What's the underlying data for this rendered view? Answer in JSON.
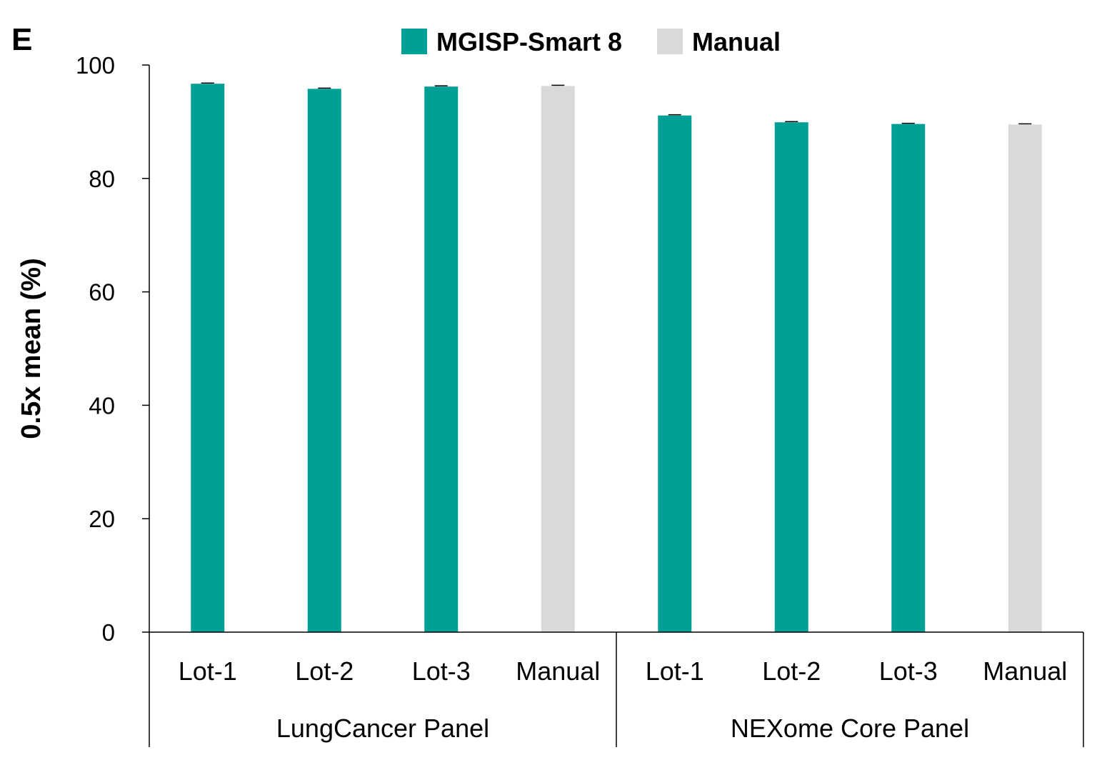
{
  "panel_label": "E",
  "colors": {
    "MGISP-Smart 8": "#00A096",
    "Manual": "#D9D9D9",
    "axis": "#000000"
  },
  "chart_data": {
    "type": "bar",
    "title": "",
    "ylabel": "0.5x mean (%)",
    "xlabel": "",
    "ylim": [
      0,
      100
    ],
    "yticks": [
      0,
      20,
      40,
      60,
      80,
      100
    ],
    "legend": {
      "placement": "top-center",
      "entries": [
        "MGISP-Smart 8",
        "Manual"
      ]
    },
    "groups": [
      {
        "name": "LungCancer Panel",
        "bars": [
          {
            "category": "Lot-1",
            "series": "MGISP-Smart 8",
            "value": 96.7
          },
          {
            "category": "Lot-2",
            "series": "MGISP-Smart 8",
            "value": 95.8
          },
          {
            "category": "Lot-3",
            "series": "MGISP-Smart 8",
            "value": 96.2
          },
          {
            "category": "Manual",
            "series": "Manual",
            "value": 96.3
          }
        ]
      },
      {
        "name": "NEXome Core Panel",
        "bars": [
          {
            "category": "Lot-1",
            "series": "MGISP-Smart 8",
            "value": 91.1
          },
          {
            "category": "Lot-2",
            "series": "MGISP-Smart 8",
            "value": 89.9
          },
          {
            "category": "Lot-3",
            "series": "MGISP-Smart 8",
            "value": 89.6
          },
          {
            "category": "Manual",
            "series": "Manual",
            "value": 89.5
          }
        ]
      }
    ]
  }
}
